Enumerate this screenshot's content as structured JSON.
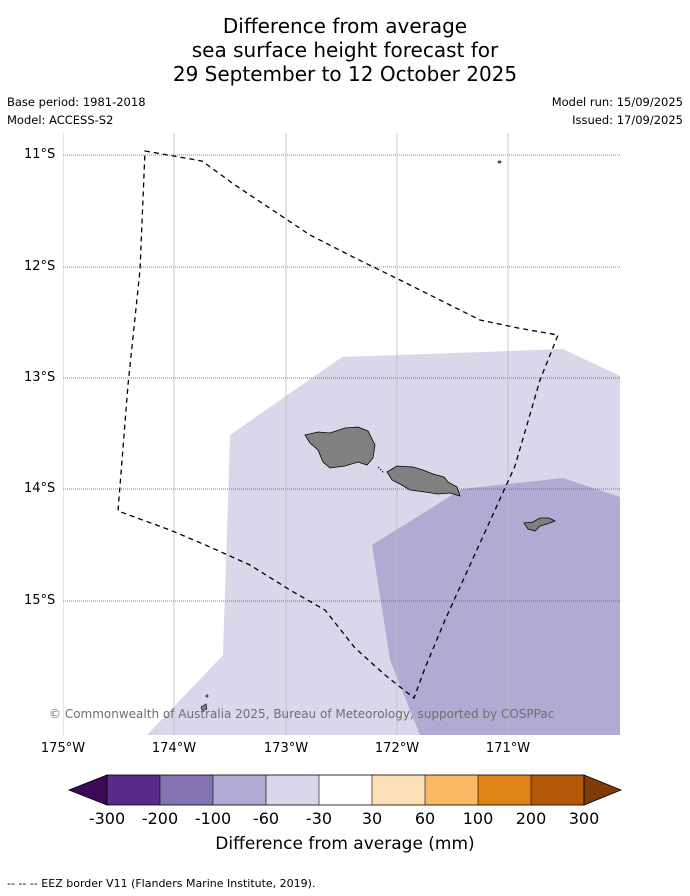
{
  "title": [
    "Difference from average",
    "sea surface height forecast for",
    "29 September to 12 October 2025"
  ],
  "meta": {
    "base_period": "Base period: 1981-2018",
    "model": "Model: ACCESS-S2",
    "model_run": "Model run: 15/09/2025",
    "issued": "Issued: 17/09/2025"
  },
  "map": {
    "lat_labels": [
      "11°S",
      "12°S",
      "13°S",
      "14°S",
      "15°S"
    ],
    "lon_labels": [
      "175°W",
      "174°W",
      "173°W",
      "172°W",
      "171°W"
    ],
    "copyright": "© Commonwealth of Australia 2025, Bureau of Meteorology, supported by COSPPac",
    "colors": {
      "band_neg60_neg30": "#d8d8ea",
      "band_neg100_neg60": "#b1aad2",
      "land": "#808080",
      "eez_border": "#000000"
    }
  },
  "colorbar": {
    "ticks": [
      "-300",
      "-200",
      "-100",
      "-60",
      "-30",
      "30",
      "60",
      "100",
      "200",
      "300"
    ],
    "colors": [
      "#3a0a56",
      "#5a2a8a",
      "#8373b0",
      "#b1aad2",
      "#d8d8ea",
      "#ffffff",
      "#fee0b6",
      "#fdb863",
      "#e08214",
      "#b35806",
      "#7f3b08"
    ],
    "label": "Difference from average (mm)"
  },
  "footnote": "--  --  -- EEZ border V11 (Flanders Marine Institute, 2019)."
}
